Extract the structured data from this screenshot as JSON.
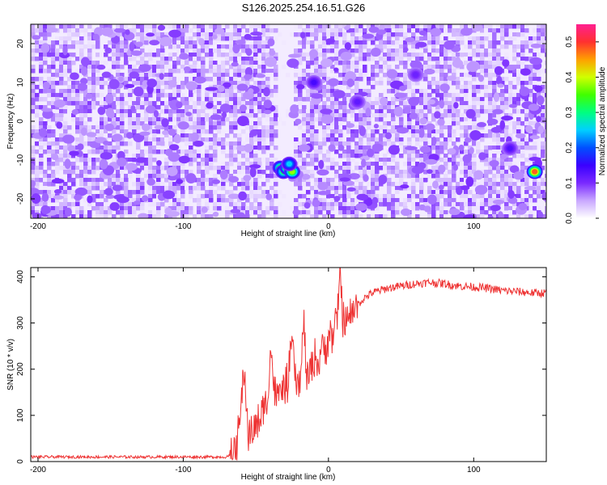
{
  "title": "S126.2025.254.16.51.G26",
  "chart_data": [
    {
      "type": "heatmap",
      "xlabel": "Height of straight line (km)",
      "ylabel": "Frequency (Hz)",
      "xlim": [
        -205,
        150
      ],
      "ylim": [
        -25,
        25
      ],
      "x_ticks": [
        -200,
        -100,
        0,
        100
      ],
      "y_ticks": [
        -20,
        -10,
        0,
        10,
        20
      ],
      "colorbar": {
        "label": "Normalized spectral amplitude",
        "range": [
          0,
          0.55
        ],
        "ticks": [
          0.0,
          0.1,
          0.2,
          0.3,
          0.4,
          0.5
        ],
        "colors": [
          "#ffffff",
          "#c9a8ff",
          "#7a2aff",
          "#3a00ff",
          "#0050ff",
          "#00d0ff",
          "#00ff80",
          "#40ff00",
          "#d0ff00",
          "#ffa000",
          "#ff3030",
          "#ff2090"
        ]
      },
      "masked_band_x": [
        -36,
        -25
      ],
      "peaks": [
        {
          "x": -33,
          "y": -12,
          "value": 0.35
        },
        {
          "x": -31,
          "y": -13,
          "value": 0.32
        },
        {
          "x": -28,
          "y": -12,
          "value": 0.42
        },
        {
          "x": -25,
          "y": -13,
          "value": 0.38
        },
        {
          "x": -27,
          "y": -11,
          "value": 0.25
        },
        {
          "x": 142,
          "y": -13,
          "value": 0.48
        },
        {
          "x": -10,
          "y": 10,
          "value": 0.14
        },
        {
          "x": 20,
          "y": 5,
          "value": 0.12
        },
        {
          "x": 60,
          "y": 12,
          "value": 0.11
        },
        {
          "x": 125,
          "y": -7,
          "value": 0.13
        }
      ]
    },
    {
      "type": "line",
      "xlabel": "Height of straight line (km)",
      "ylabel": "SNR (10 * v/v)",
      "xlim": [
        -205,
        150
      ],
      "ylim": [
        0,
        420
      ],
      "x_ticks": [
        -200,
        -100,
        0,
        100
      ],
      "y_ticks": [
        0,
        100,
        200,
        300,
        400
      ],
      "series": [
        {
          "color": "#ee3333",
          "x": [
            -205,
            -190,
            -175,
            -160,
            -145,
            -130,
            -115,
            -100,
            -85,
            -75,
            -70,
            -66,
            -63,
            -61,
            -58,
            -55,
            -52,
            -48,
            -45,
            -42,
            -40,
            -37,
            -34,
            -31,
            -28,
            -25,
            -22,
            -19,
            -17,
            -15,
            -13,
            -11,
            -9,
            -7,
            -5,
            -3,
            -1,
            1,
            3,
            5,
            7,
            8,
            10,
            13,
            16,
            20,
            25,
            30,
            40,
            50,
            60,
            70,
            80,
            90,
            100,
            110,
            120,
            130,
            140,
            150
          ],
          "y": [
            10,
            10,
            10,
            10,
            10,
            10,
            10,
            10,
            10,
            10,
            10,
            15,
            35,
            90,
            200,
            55,
            70,
            85,
            110,
            130,
            250,
            150,
            140,
            160,
            170,
            260,
            160,
            180,
            310,
            175,
            190,
            210,
            230,
            205,
            250,
            240,
            260,
            280,
            270,
            300,
            330,
            420,
            310,
            300,
            320,
            340,
            355,
            365,
            375,
            380,
            385,
            388,
            385,
            380,
            378,
            375,
            370,
            368,
            365,
            365
          ]
        }
      ]
    }
  ]
}
